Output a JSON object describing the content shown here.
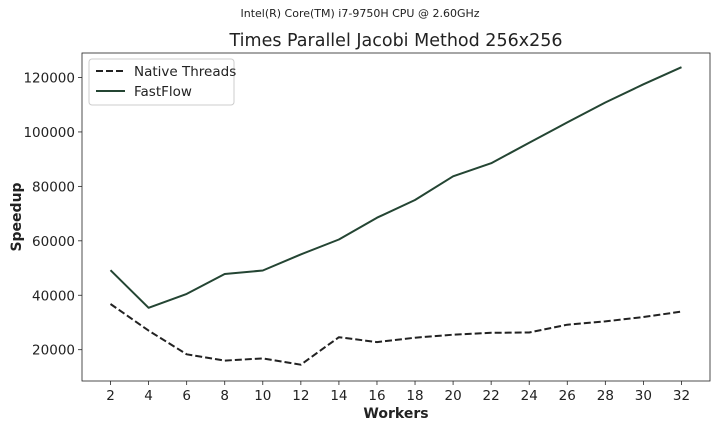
{
  "chart_data": {
    "type": "line",
    "suptitle": "Intel(R) Core(TM) i7-9750H CPU @ 2.60GHz",
    "title": "Times Parallel Jacobi Method 256x256",
    "xlabel": "Workers",
    "ylabel": "Speedup",
    "x": [
      2,
      4,
      6,
      8,
      10,
      12,
      14,
      16,
      18,
      20,
      22,
      24,
      26,
      28,
      30,
      32
    ],
    "xlim": [
      0.5,
      33.5
    ],
    "ylim": [
      8500,
      129000
    ],
    "yticks": [
      20000,
      40000,
      60000,
      80000,
      100000,
      120000
    ],
    "grid": false,
    "legend_position": "top-left",
    "series": [
      {
        "name": "Native Threads",
        "style": "dashed",
        "color": "#222222",
        "values": [
          36800,
          27000,
          18300,
          16000,
          16800,
          14500,
          24600,
          22800,
          24400,
          25500,
          26200,
          26300,
          29200,
          30400,
          32000,
          34000
        ]
      },
      {
        "name": "FastFlow",
        "style": "solid",
        "color": "#244533",
        "values": [
          49200,
          35400,
          40500,
          47800,
          49100,
          55000,
          60500,
          68500,
          75000,
          83700,
          88500,
          96000,
          103500,
          110800,
          117500,
          123800
        ]
      }
    ]
  }
}
